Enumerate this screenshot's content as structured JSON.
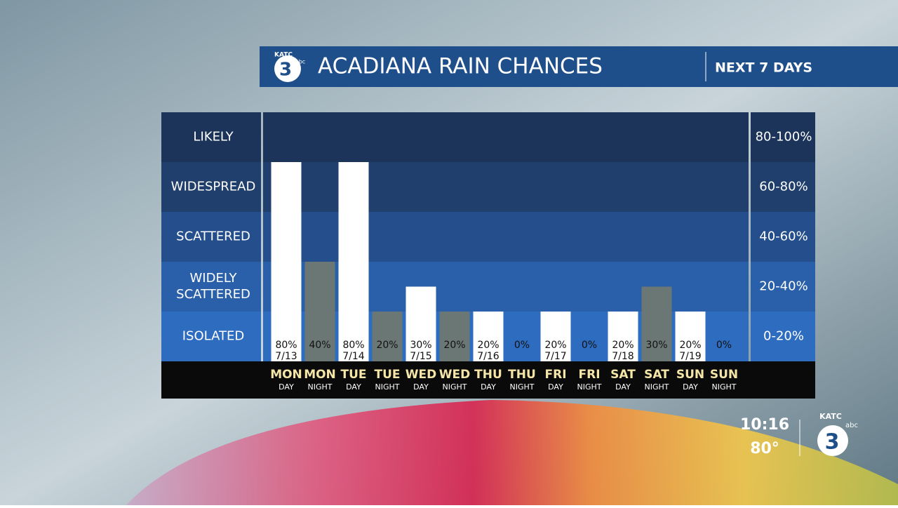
{
  "chart_data": {
    "type": "bar",
    "title": "ACADIANA RAIN CHANCES",
    "subtitle": "NEXT 7 DAYS",
    "categories": [
      "MON",
      "MON",
      "TUE",
      "TUE",
      "WED",
      "WED",
      "THU",
      "THU",
      "FRI",
      "FRI",
      "SAT",
      "SAT",
      "SUN",
      "SUN"
    ],
    "periods": [
      "DAY",
      "NIGHT",
      "DAY",
      "NIGHT",
      "DAY",
      "NIGHT",
      "DAY",
      "NIGHT",
      "DAY",
      "NIGHT",
      "DAY",
      "NIGHT",
      "DAY",
      "NIGHT"
    ],
    "dates": [
      "7/13",
      null,
      "7/14",
      null,
      "7/15",
      null,
      "7/16",
      null,
      "7/17",
      null,
      "7/18",
      null,
      "7/19",
      null
    ],
    "values": [
      80,
      40,
      80,
      20,
      30,
      20,
      20,
      0,
      20,
      0,
      20,
      30,
      20,
      0
    ],
    "value_labels": [
      "80%",
      "40%",
      "80%",
      "20%",
      "30%",
      "20%",
      "20%",
      "0%",
      "20%",
      "0%",
      "20%",
      "30%",
      "20%",
      "0%"
    ],
    "colors": [
      "#ffffff",
      "#6b7774",
      "#ffffff",
      "#6b7774",
      "#ffffff",
      "#6b7774",
      "#ffffff",
      "#6b7774",
      "#ffffff",
      "#6b7774",
      "#ffffff",
      "#6b7774",
      "#ffffff",
      "#6b7774"
    ],
    "ylim": [
      0,
      100
    ],
    "bands": [
      {
        "label": "LIKELY",
        "range": "80-100%",
        "from": 80,
        "to": 100,
        "color": "#1c3459"
      },
      {
        "label": "WIDESPREAD",
        "range": "60-80%",
        "from": 60,
        "to": 80,
        "color": "#203f6d"
      },
      {
        "label": "SCATTERED",
        "range": "40-60%",
        "from": 40,
        "to": 60,
        "color": "#244f8c"
      },
      {
        "label": "WIDELY SCATTERED",
        "range": "20-40%",
        "from": 20,
        "to": 40,
        "color": "#2a5fa9"
      },
      {
        "label": "ISOLATED",
        "range": "0-20%",
        "from": 0,
        "to": 20,
        "color": "#2e6cc0"
      }
    ]
  },
  "branding": {
    "station": "KATC",
    "channel": "3",
    "network": "abc"
  },
  "status": {
    "time": "10:16",
    "temperature": "80°"
  }
}
